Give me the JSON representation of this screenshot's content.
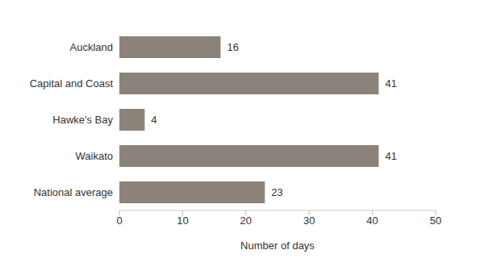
{
  "chart_data": {
    "type": "bar",
    "orientation": "horizontal",
    "categories": [
      "Auckland",
      "Capital and Coast",
      "Hawke's Bay",
      "Waikato",
      "National average"
    ],
    "values": [
      16,
      41,
      4,
      41,
      23
    ],
    "color": "#8b827a",
    "xlabel": "Number of days",
    "xlim": [
      0,
      50
    ],
    "xticks": [
      0,
      10,
      20,
      30,
      40,
      50
    ],
    "data_labels": true,
    "grid": false
  }
}
